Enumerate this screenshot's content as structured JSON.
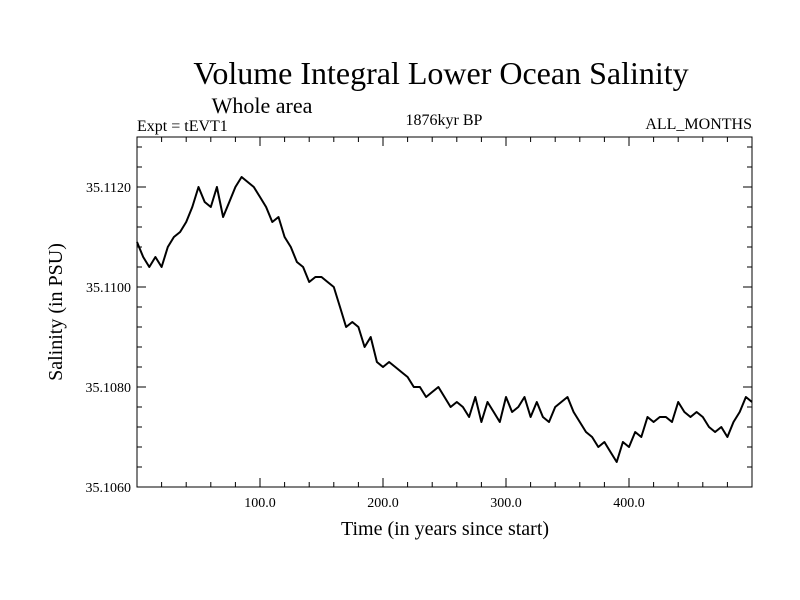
{
  "chart_data": {
    "type": "line",
    "title": "Volume Integral Lower Ocean Salinity",
    "subtitle": "Whole area",
    "annotations": {
      "left": "Expt = tEVT1",
      "center": "1876kyr BP",
      "right": "ALL_MONTHS"
    },
    "xlabel": "Time (in years since start)",
    "ylabel": "Salinity (in PSU)",
    "xlim": [
      0,
      500
    ],
    "ylim": [
      35.106,
      35.113
    ],
    "x_ticks": [
      {
        "value": 100,
        "label": "100.0"
      },
      {
        "value": 200,
        "label": "200.0"
      },
      {
        "value": 300,
        "label": "300.0"
      },
      {
        "value": 400,
        "label": "400.0"
      }
    ],
    "y_ticks": [
      {
        "value": 35.106,
        "label": "35.1060"
      },
      {
        "value": 35.108,
        "label": "35.1080"
      },
      {
        "value": 35.11,
        "label": "35.1100"
      },
      {
        "value": 35.112,
        "label": "35.1120"
      }
    ],
    "grid": false,
    "series": [
      {
        "name": "Salinity",
        "color": "#000000",
        "x": [
          0,
          5,
          10,
          15,
          20,
          25,
          30,
          35,
          40,
          45,
          50,
          55,
          60,
          65,
          70,
          75,
          80,
          85,
          90,
          95,
          100,
          105,
          110,
          115,
          120,
          125,
          130,
          135,
          140,
          145,
          150,
          155,
          160,
          165,
          170,
          175,
          180,
          185,
          190,
          195,
          200,
          205,
          210,
          215,
          220,
          225,
          230,
          235,
          240,
          245,
          250,
          255,
          260,
          265,
          270,
          275,
          280,
          285,
          290,
          295,
          300,
          305,
          310,
          315,
          320,
          325,
          330,
          335,
          340,
          345,
          350,
          355,
          360,
          365,
          370,
          375,
          380,
          385,
          390,
          395,
          400,
          405,
          410,
          415,
          420,
          425,
          430,
          435,
          440,
          445,
          450,
          455,
          460,
          465,
          470,
          475,
          480,
          485,
          490,
          495,
          500
        ],
        "values": [
          35.1109,
          35.1106,
          35.1104,
          35.1106,
          35.1104,
          35.1108,
          35.111,
          35.1111,
          35.1113,
          35.1116,
          35.112,
          35.1117,
          35.1116,
          35.112,
          35.1114,
          35.1117,
          35.112,
          35.1122,
          35.1121,
          35.112,
          35.1118,
          35.1116,
          35.1113,
          35.1114,
          35.111,
          35.1108,
          35.1105,
          35.1104,
          35.1101,
          35.1102,
          35.1102,
          35.1101,
          35.11,
          35.1096,
          35.1092,
          35.1093,
          35.1092,
          35.1088,
          35.109,
          35.1085,
          35.1084,
          35.1085,
          35.1084,
          35.1083,
          35.1082,
          35.108,
          35.108,
          35.1078,
          35.1079,
          35.108,
          35.1078,
          35.1076,
          35.1077,
          35.1076,
          35.1074,
          35.1078,
          35.1073,
          35.1077,
          35.1075,
          35.1073,
          35.1078,
          35.1075,
          35.1076,
          35.1078,
          35.1074,
          35.1077,
          35.1074,
          35.1073,
          35.1076,
          35.1077,
          35.1078,
          35.1075,
          35.1073,
          35.1071,
          35.107,
          35.1068,
          35.1069,
          35.1067,
          35.1065,
          35.1069,
          35.1068,
          35.1071,
          35.107,
          35.1074,
          35.1073,
          35.1074,
          35.1074,
          35.1073,
          35.1077,
          35.1075,
          35.1074,
          35.1075,
          35.1074,
          35.1072,
          35.1071,
          35.1072,
          35.107,
          35.1073,
          35.1075,
          35.1078,
          35.1077
        ]
      }
    ]
  }
}
